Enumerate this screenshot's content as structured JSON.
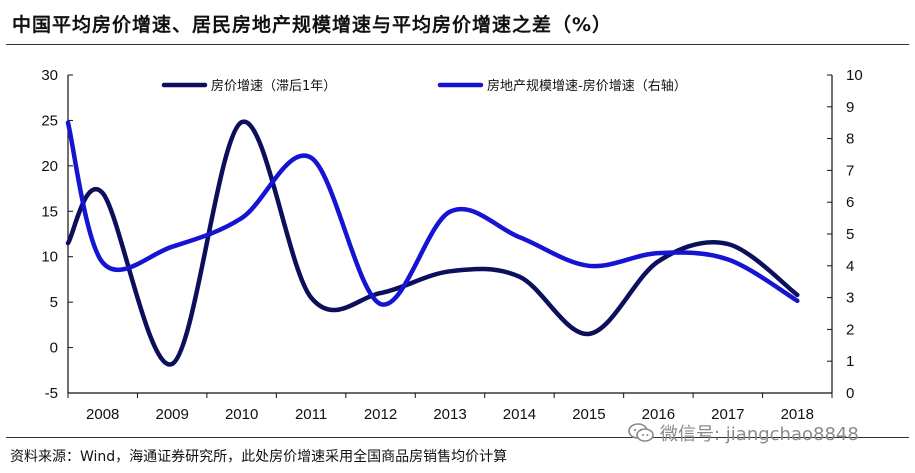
{
  "title": "中国平均房价增速、居民房地产规模增速与平均房价增速之差（%）",
  "source": "资料来源：Wind，海通证券研究所，此处房价增速采用全国商品房销售均价计算",
  "watermark": "微信号: jiangchao8848",
  "watermark_icon": "wechat-icon",
  "chart_data": {
    "type": "line",
    "x": [
      "2008",
      "2009",
      "2010",
      "2011",
      "2012",
      "2013",
      "2014",
      "2015",
      "2016",
      "2017",
      "2018"
    ],
    "y_left": {
      "range": [
        -5,
        30
      ],
      "ticks": [
        "-5",
        "0",
        "5",
        "10",
        "15",
        "20",
        "25",
        "30"
      ]
    },
    "y_right": {
      "range": [
        0,
        10
      ],
      "ticks": [
        "0",
        "1",
        "2",
        "3",
        "4",
        "5",
        "6",
        "7",
        "8",
        "9",
        "10"
      ]
    },
    "series": [
      {
        "name": "房价增速（滞后1年）",
        "axis": "left",
        "color": "#0b0f5c",
        "start_value": 11.5,
        "values": [
          17.0,
          -1.8,
          24.8,
          5.5,
          6.0,
          8.4,
          7.8,
          1.5,
          9.5,
          11.4,
          5.8
        ]
      },
      {
        "name": "房地产规模增速-房价增速（右轴）",
        "axis": "right",
        "color": "#1414d2",
        "start_value": 8.5,
        "values": [
          4.1,
          4.6,
          5.5,
          7.4,
          2.8,
          5.7,
          4.9,
          4.0,
          4.4,
          4.2,
          2.9
        ]
      }
    ],
    "legend": "top",
    "grid": false
  }
}
